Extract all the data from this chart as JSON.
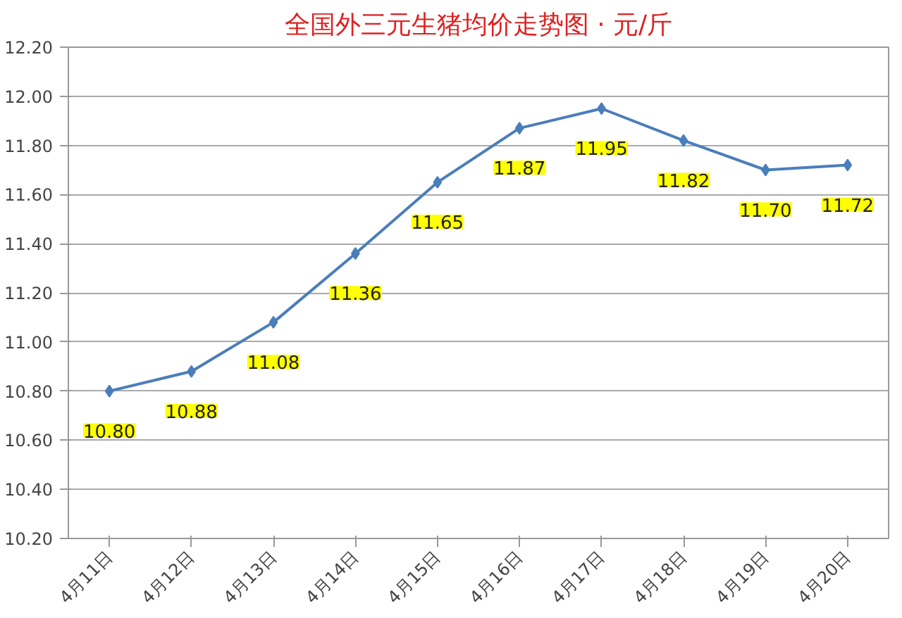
{
  "chart_data": {
    "type": "line",
    "title": "全国外三元生猪均价走势图 · 元/斤",
    "categories": [
      "4月11日",
      "4月12日",
      "4月13日",
      "4月14日",
      "4月15日",
      "4月16日",
      "4月17日",
      "4月18日",
      "4月19日",
      "4月20日"
    ],
    "series": [
      {
        "color": "#4a7ebb",
        "values": [
          10.8,
          10.88,
          11.08,
          11.36,
          11.65,
          11.87,
          11.95,
          11.82,
          11.7,
          11.72
        ],
        "value_labels": [
          "10.80",
          "10.88",
          "11.08",
          "11.36",
          "11.65",
          "11.87",
          "11.95",
          "11.82",
          "11.70",
          "11.72"
        ]
      }
    ],
    "ylim": [
      10.2,
      12.2
    ],
    "yticks": [
      {
        "value": 10.2,
        "label": "10.20"
      },
      {
        "value": 10.4,
        "label": "10.40"
      },
      {
        "value": 10.6,
        "label": "10.60"
      },
      {
        "value": 10.8,
        "label": "10.80"
      },
      {
        "value": 11.0,
        "label": "11.00"
      },
      {
        "value": 11.2,
        "label": "11.20"
      },
      {
        "value": 11.4,
        "label": "11.40"
      },
      {
        "value": 11.6,
        "label": "11.60"
      },
      {
        "value": 11.8,
        "label": "11.80"
      },
      {
        "value": 12.0,
        "label": "12.00"
      },
      {
        "value": 12.2,
        "label": "12.20"
      }
    ],
    "grid": "y",
    "marker": "diamond"
  }
}
